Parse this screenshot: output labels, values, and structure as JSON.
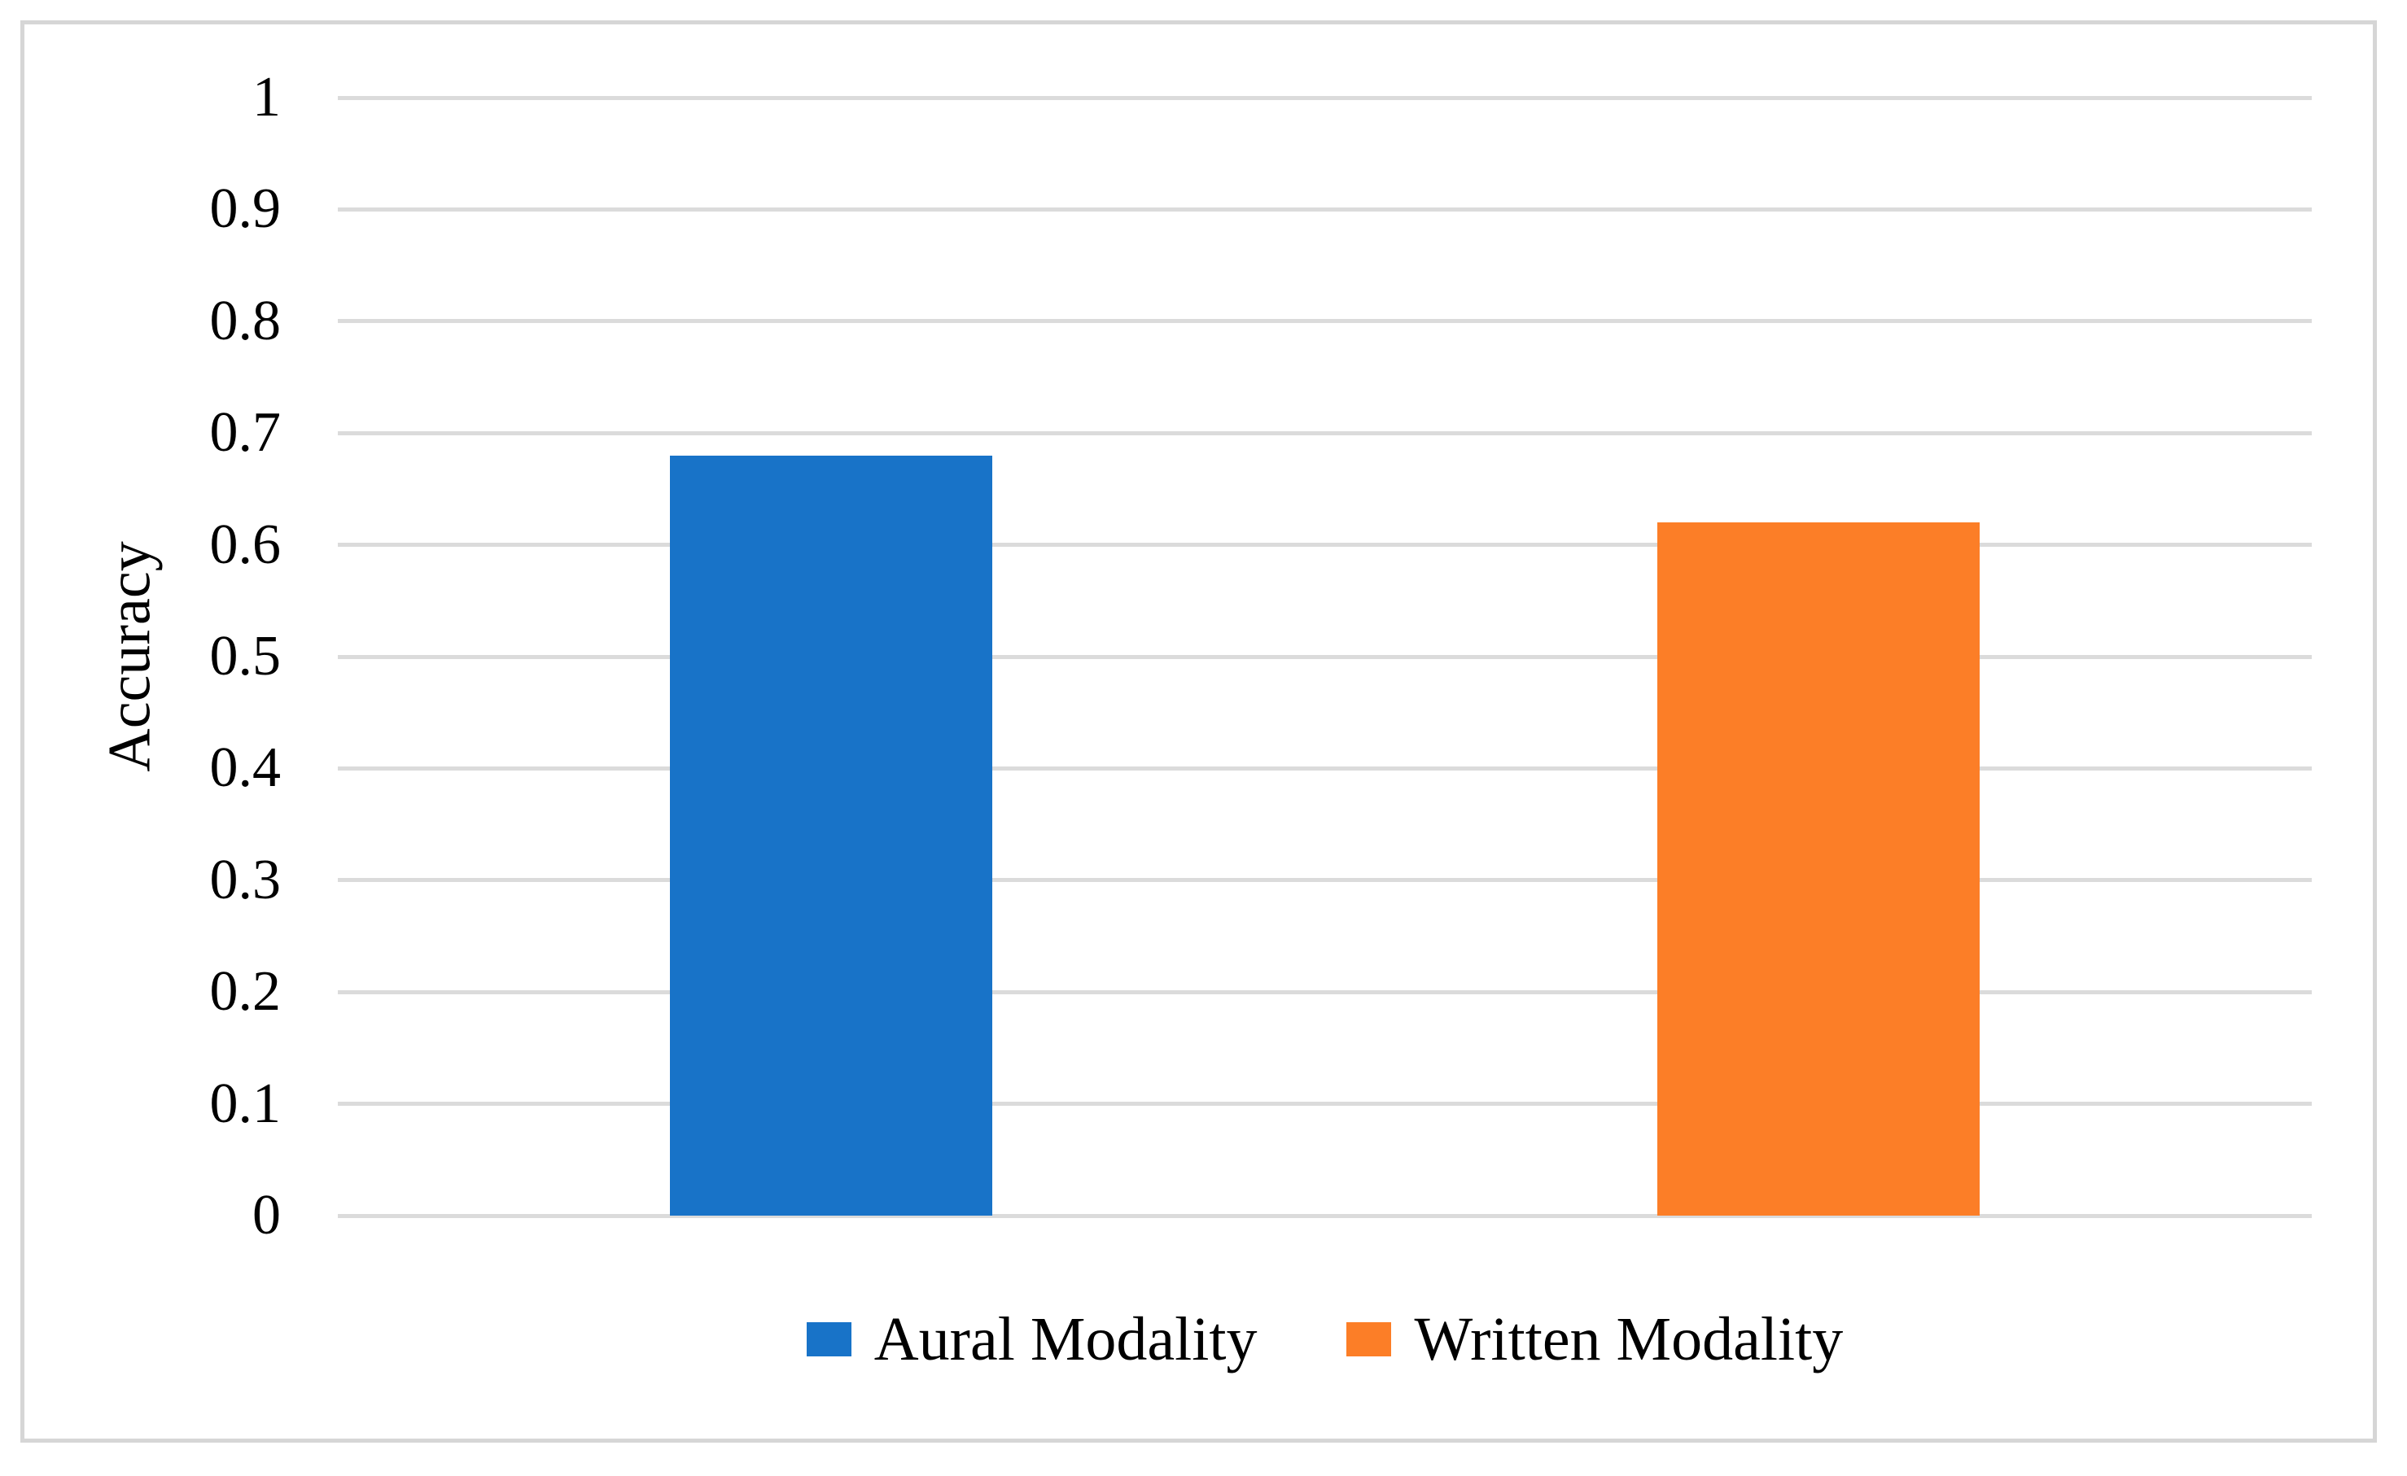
{
  "chart_data": {
    "type": "bar",
    "title": "",
    "xlabel": "",
    "ylabel": "Accuracy",
    "ylim": [
      0,
      1
    ],
    "ytick_labels": [
      "1",
      "0.9",
      "0.8",
      "0.7",
      "0.6",
      "0.5",
      "0.4",
      "0.3",
      "0.2",
      "0.1",
      "0"
    ],
    "ytick_values": [
      1,
      0.9,
      0.8,
      0.7,
      0.6,
      0.5,
      0.4,
      0.3,
      0.2,
      0.1,
      0
    ],
    "grid": true,
    "legend_position": "bottom",
    "series": [
      {
        "name": "Aural Modality",
        "value": 0.68,
        "color": "#1873c8"
      },
      {
        "name": "Written Modality",
        "value": 0.62,
        "color": "#fc7e27"
      }
    ]
  },
  "colors": {
    "background": "#ffffff",
    "gridline": "#dbdbdb",
    "frame_border": "#d6d6d6",
    "text": "#000000",
    "bar_blue": "#1873c8",
    "bar_orange": "#fc7e27"
  }
}
